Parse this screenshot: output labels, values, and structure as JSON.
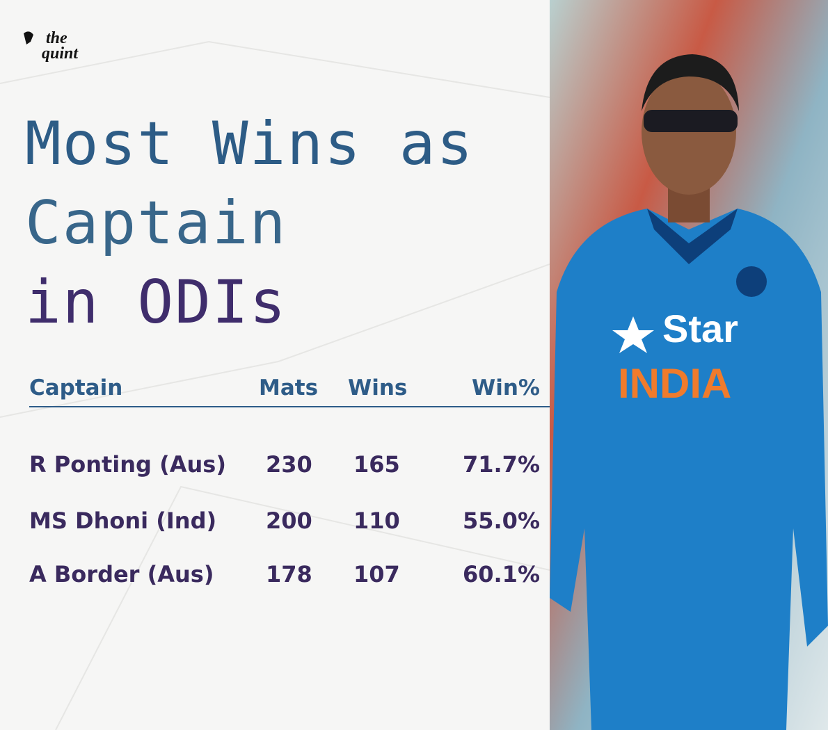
{
  "logo": {
    "top": "the",
    "bottom": "quint"
  },
  "title": [
    "Most Wins as",
    "Captain",
    "in ODIs"
  ],
  "table": {
    "header": [
      "Captain",
      "Mats",
      "Wins",
      "Win%"
    ],
    "rows": [
      [
        "R Ponting (Aus)",
        230,
        165,
        "71.7%"
      ],
      [
        "MS Dhoni (Ind)",
        200,
        110,
        "55.0%"
      ],
      [
        "A Border (Aus)",
        178,
        107,
        "60.1%"
      ]
    ]
  },
  "photo": {
    "sponsor": "Star",
    "team": "INDIA"
  }
}
